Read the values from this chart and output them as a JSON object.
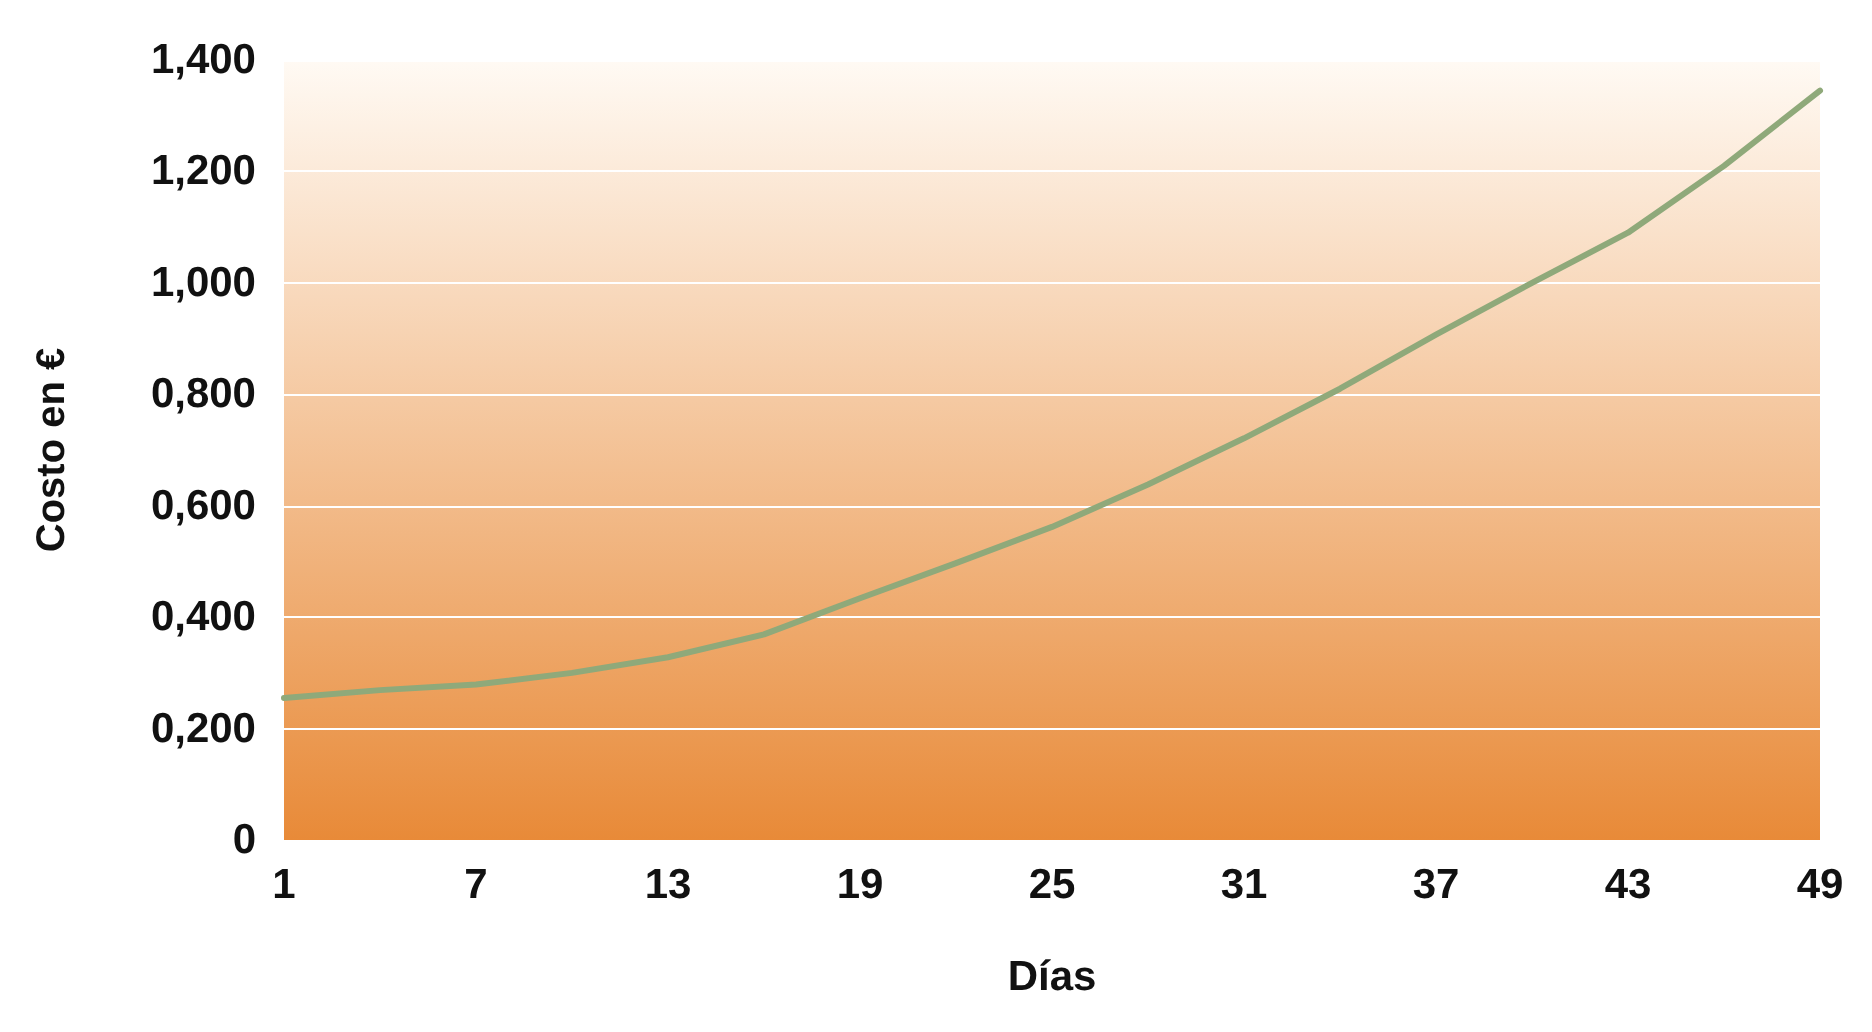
{
  "chart_data": {
    "type": "line",
    "xlabel": "Días",
    "ylabel": "Costo en €",
    "x": [
      1,
      4,
      7,
      10,
      13,
      16,
      19,
      22,
      25,
      28,
      31,
      34,
      37,
      40,
      43,
      46,
      49
    ],
    "series": [
      {
        "color": "#8fa97a",
        "values": [
          0.255,
          0.269,
          0.279,
          0.3,
          0.328,
          0.369,
          0.434,
          0.497,
          0.562,
          0.638,
          0.721,
          0.81,
          0.907,
          1.0,
          1.09,
          1.21,
          1.345
        ]
      }
    ],
    "xlim": [
      1,
      49
    ],
    "xticks": [
      1,
      7,
      13,
      19,
      25,
      31,
      37,
      43,
      49
    ],
    "ylim": [
      0,
      1.4
    ],
    "yticks": [
      0,
      {
        "value": 0.2,
        "label": "0,200"
      },
      {
        "value": 0.4,
        "label": "0,400"
      },
      {
        "value": 0.6,
        "label": "0,600"
      },
      {
        "value": 0.8,
        "label": "0,800"
      },
      {
        "value": 1.0,
        "label": "1,000"
      },
      {
        "value": 1.2,
        "label": "1,200"
      },
      {
        "value": 1.4,
        "label": "1,400"
      }
    ],
    "grid": "y",
    "marker": "none",
    "line_style": "solid"
  }
}
